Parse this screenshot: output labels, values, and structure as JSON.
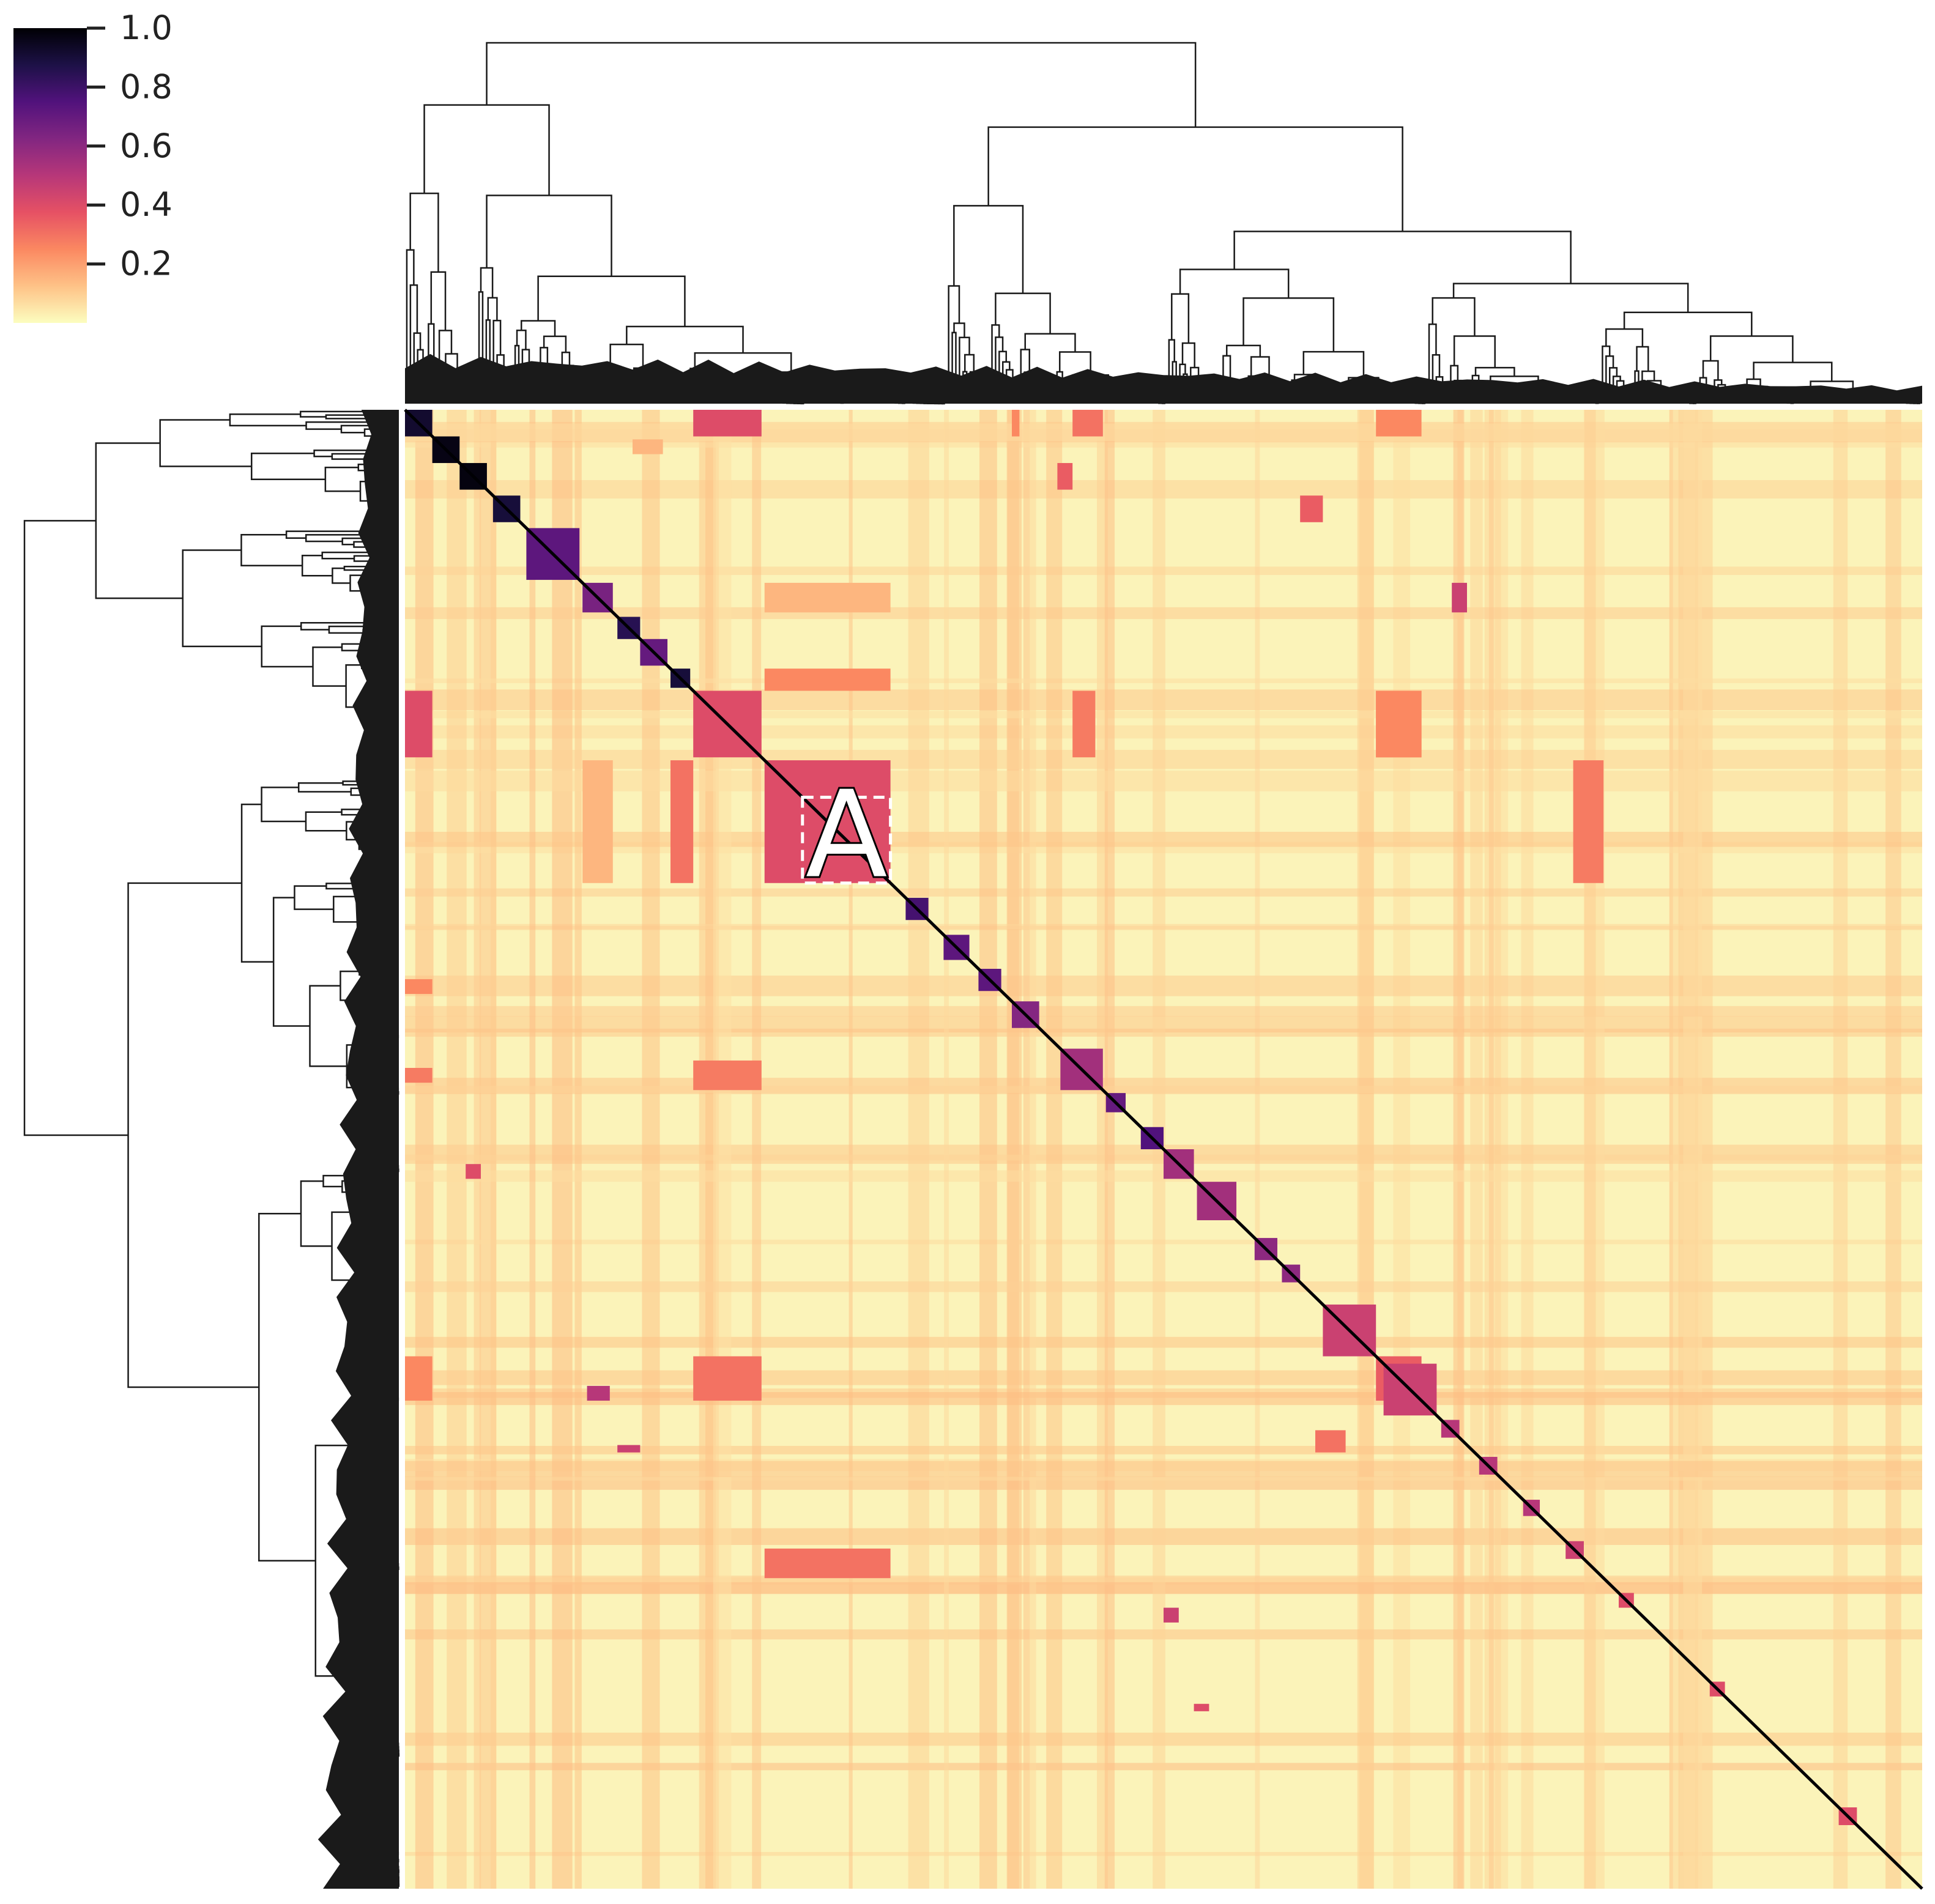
{
  "chart_data": {
    "type": "heatmap",
    "title": "",
    "xlabel": "",
    "ylabel": "",
    "value_range": [
      0.0,
      1.0
    ],
    "colormap": "magma_r",
    "colorbar": {
      "ticks": [
        1.0,
        0.8,
        0.6,
        0.4,
        0.2
      ],
      "tick_labels": [
        "1.0",
        "0.8",
        "0.6",
        "0.4",
        "0.2"
      ],
      "stops": [
        "#fcfdbf",
        "#fec287",
        "#fb8861",
        "#e65164",
        "#b73779",
        "#822681",
        "#51127c",
        "#1d1147",
        "#000004"
      ]
    },
    "diagonal_value": 1.0,
    "background_value": 0.05,
    "dendrograms": [
      "top",
      "left"
    ],
    "blocks": [
      {
        "s": 0.0,
        "e": 0.018,
        "v": 0.92
      },
      {
        "s": 0.018,
        "e": 0.036,
        "v": 0.97
      },
      {
        "s": 0.036,
        "e": 0.054,
        "v": 0.98
      },
      {
        "s": 0.058,
        "e": 0.076,
        "v": 0.9
      },
      {
        "s": 0.08,
        "e": 0.115,
        "v": 0.72
      },
      {
        "s": 0.117,
        "e": 0.137,
        "v": 0.65
      },
      {
        "s": 0.14,
        "e": 0.155,
        "v": 0.85
      },
      {
        "s": 0.155,
        "e": 0.173,
        "v": 0.7
      },
      {
        "s": 0.175,
        "e": 0.188,
        "v": 0.9
      },
      {
        "s": 0.19,
        "e": 0.235,
        "v": 0.4
      },
      {
        "s": 0.237,
        "e": 0.32,
        "v": 0.4
      },
      {
        "s": 0.33,
        "e": 0.345,
        "v": 0.78
      },
      {
        "s": 0.355,
        "e": 0.372,
        "v": 0.72
      },
      {
        "s": 0.378,
        "e": 0.393,
        "v": 0.72
      },
      {
        "s": 0.4,
        "e": 0.418,
        "v": 0.62
      },
      {
        "s": 0.432,
        "e": 0.46,
        "v": 0.55
      },
      {
        "s": 0.462,
        "e": 0.475,
        "v": 0.7
      },
      {
        "s": 0.485,
        "e": 0.5,
        "v": 0.75
      },
      {
        "s": 0.5,
        "e": 0.52,
        "v": 0.55
      },
      {
        "s": 0.522,
        "e": 0.548,
        "v": 0.55
      },
      {
        "s": 0.56,
        "e": 0.575,
        "v": 0.6
      },
      {
        "s": 0.578,
        "e": 0.59,
        "v": 0.6
      },
      {
        "s": 0.605,
        "e": 0.64,
        "v": 0.45
      },
      {
        "s": 0.645,
        "e": 0.68,
        "v": 0.45
      },
      {
        "s": 0.683,
        "e": 0.695,
        "v": 0.5
      },
      {
        "s": 0.708,
        "e": 0.72,
        "v": 0.5
      },
      {
        "s": 0.737,
        "e": 0.748,
        "v": 0.5
      },
      {
        "s": 0.765,
        "e": 0.777,
        "v": 0.45
      },
      {
        "s": 0.8,
        "e": 0.81,
        "v": 0.4
      },
      {
        "s": 0.86,
        "e": 0.87,
        "v": 0.4
      },
      {
        "s": 0.945,
        "e": 0.957,
        "v": 0.4
      }
    ],
    "offdiag": [
      {
        "r": [
          0.0,
          0.018
        ],
        "c": [
          0.19,
          0.235
        ],
        "v": 0.4
      },
      {
        "r": [
          0.19,
          0.235
        ],
        "c": [
          0.0,
          0.018
        ],
        "v": 0.4
      },
      {
        "r": [
          0.0,
          0.018
        ],
        "c": [
          0.44,
          0.46
        ],
        "v": 0.3
      },
      {
        "r": [
          0.0,
          0.018
        ],
        "c": [
          0.64,
          0.67
        ],
        "v": 0.25
      },
      {
        "r": [
          0.0,
          0.018
        ],
        "c": [
          0.4,
          0.405
        ],
        "v": 0.25
      },
      {
        "r": [
          0.19,
          0.235
        ],
        "c": [
          0.64,
          0.67
        ],
        "v": 0.28
      },
      {
        "r": [
          0.64,
          0.67
        ],
        "c": [
          0.19,
          0.235
        ],
        "v": 0.3
      },
      {
        "r": [
          0.64,
          0.67
        ],
        "c": [
          0.0,
          0.018
        ],
        "v": 0.25
      },
      {
        "r": [
          0.237,
          0.32
        ],
        "c": [
          0.77,
          0.79
        ],
        "v": 0.28
      },
      {
        "r": [
          0.237,
          0.32
        ],
        "c": [
          0.175,
          0.19
        ],
        "v": 0.3
      },
      {
        "r": [
          0.237,
          0.32
        ],
        "c": [
          0.117,
          0.137
        ],
        "v": 0.15
      },
      {
        "r": [
          0.117,
          0.137
        ],
        "c": [
          0.237,
          0.32
        ],
        "v": 0.15
      },
      {
        "r": [
          0.175,
          0.19
        ],
        "c": [
          0.237,
          0.32
        ],
        "v": 0.25
      },
      {
        "r": [
          0.77,
          0.79
        ],
        "c": [
          0.237,
          0.32
        ],
        "v": 0.3
      },
      {
        "r": [
          0.117,
          0.137
        ],
        "c": [
          0.69,
          0.7
        ],
        "v": 0.45
      },
      {
        "r": [
          0.02,
          0.03
        ],
        "c": [
          0.15,
          0.17
        ],
        "v": 0.15
      },
      {
        "r": [
          0.058,
          0.076
        ],
        "c": [
          0.59,
          0.605
        ],
        "v": 0.35
      },
      {
        "r": [
          0.036,
          0.054
        ],
        "c": [
          0.43,
          0.44
        ],
        "v": 0.35
      },
      {
        "r": [
          0.19,
          0.235
        ],
        "c": [
          0.44,
          0.455
        ],
        "v": 0.28
      },
      {
        "r": [
          0.19,
          0.235
        ],
        "c": [
          0.64,
          0.67
        ],
        "v": 0.25
      },
      {
        "r": [
          0.44,
          0.46
        ],
        "c": [
          0.19,
          0.235
        ],
        "v": 0.28
      },
      {
        "r": [
          0.64,
          0.67
        ],
        "c": [
          0.64,
          0.67
        ],
        "v": 0.35
      },
      {
        "r": [
          0.66,
          0.67
        ],
        "c": [
          0.12,
          0.135
        ],
        "v": 0.5
      },
      {
        "r": [
          0.7,
          0.705
        ],
        "c": [
          0.14,
          0.155
        ],
        "v": 0.45
      },
      {
        "r": [
          0.51,
          0.52
        ],
        "c": [
          0.04,
          0.05
        ],
        "v": 0.4
      },
      {
        "r": [
          0.385,
          0.395
        ],
        "c": [
          0.0,
          0.018
        ],
        "v": 0.25
      },
      {
        "r": [
          0.445,
          0.455
        ],
        "c": [
          0.0,
          0.018
        ],
        "v": 0.28
      },
      {
        "r": [
          0.81,
          0.82
        ],
        "c": [
          0.5,
          0.51
        ],
        "v": 0.45
      },
      {
        "r": [
          0.875,
          0.88
        ],
        "c": [
          0.52,
          0.53
        ],
        "v": 0.4
      },
      {
        "r": [
          0.69,
          0.705
        ],
        "c": [
          0.6,
          0.62
        ],
        "v": 0.3
      }
    ],
    "annotation": {
      "label": "A",
      "row_range": [
        0.262,
        0.32
      ],
      "col_range": [
        0.262,
        0.32
      ]
    }
  }
}
